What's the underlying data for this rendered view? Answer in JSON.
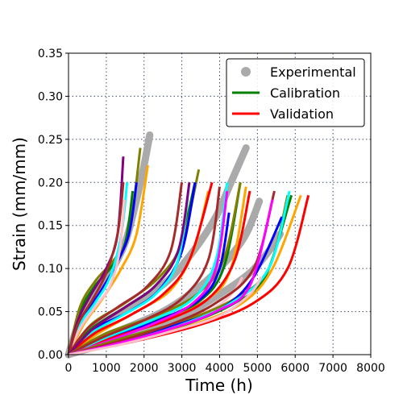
{
  "chart_data": {
    "type": "line",
    "xlabel": "Time (h)",
    "ylabel": "Strain (mm/mm)",
    "xlim": [
      0,
      8000
    ],
    "ylim": [
      0,
      0.35
    ],
    "xticks": [
      "0",
      "1000",
      "2000",
      "3000",
      "4000",
      "5000",
      "6000",
      "7000",
      "8000"
    ],
    "yticks": [
      "0.00",
      "0.05",
      "0.10",
      "0.15",
      "0.20",
      "0.25",
      "0.30",
      "0.35"
    ],
    "grid": true,
    "legend_position": "top-right",
    "legend": [
      {
        "label": "Experimental",
        "kind": "marker",
        "color": "#aaaaaa"
      },
      {
        "label": "Calibration",
        "kind": "line",
        "color": "#008000"
      },
      {
        "label": "Validation",
        "kind": "line",
        "color": "#ff0000"
      }
    ],
    "experimental_series": [
      {
        "points": [
          [
            0,
            0.0
          ],
          [
            300,
            0.04
          ],
          [
            700,
            0.07
          ],
          [
            1100,
            0.095
          ],
          [
            1500,
            0.13
          ],
          [
            1800,
            0.18
          ],
          [
            2000,
            0.22
          ],
          [
            2150,
            0.255
          ]
        ]
      },
      {
        "points": [
          [
            0,
            0.0
          ],
          [
            700,
            0.03
          ],
          [
            1600,
            0.055
          ],
          [
            2600,
            0.085
          ],
          [
            3300,
            0.12
          ],
          [
            3900,
            0.16
          ],
          [
            4300,
            0.2
          ],
          [
            4700,
            0.24
          ]
        ]
      },
      {
        "points": [
          [
            0,
            0.0
          ],
          [
            1200,
            0.025
          ],
          [
            2500,
            0.05
          ],
          [
            3500,
            0.08
          ],
          [
            4200,
            0.11
          ],
          [
            4700,
            0.14
          ],
          [
            5050,
            0.178
          ]
        ]
      },
      {
        "points": [
          [
            0,
            0.0
          ],
          [
            1500,
            0.02
          ],
          [
            3000,
            0.045
          ],
          [
            4000,
            0.07
          ],
          [
            4800,
            0.095
          ],
          [
            5300,
            0.12
          ],
          [
            5600,
            0.14
          ]
        ]
      }
    ],
    "model_series": [
      {
        "color": "#008000",
        "points": [
          [
            0,
            0.0
          ],
          [
            300,
            0.05
          ],
          [
            700,
            0.08
          ],
          [
            1100,
            0.1
          ],
          [
            1500,
            0.13
          ],
          [
            1700,
            0.19
          ]
        ]
      },
      {
        "color": "#808000",
        "points": [
          [
            0,
            0.0
          ],
          [
            300,
            0.055
          ],
          [
            700,
            0.085
          ],
          [
            1200,
            0.11
          ],
          [
            1600,
            0.14
          ],
          [
            1900,
            0.24
          ]
        ]
      },
      {
        "color": "#800080",
        "points": [
          [
            0,
            0.0
          ],
          [
            250,
            0.04
          ],
          [
            600,
            0.07
          ],
          [
            1000,
            0.1
          ],
          [
            1300,
            0.14
          ],
          [
            1450,
            0.23
          ]
        ]
      },
      {
        "color": "#0000ff",
        "points": [
          [
            0,
            0.0
          ],
          [
            350,
            0.04
          ],
          [
            800,
            0.07
          ],
          [
            1200,
            0.1
          ],
          [
            1600,
            0.14
          ],
          [
            1800,
            0.2
          ]
        ]
      },
      {
        "color": "#ffa500",
        "points": [
          [
            0,
            0.0
          ],
          [
            400,
            0.035
          ],
          [
            900,
            0.065
          ],
          [
            1400,
            0.1
          ],
          [
            1800,
            0.14
          ],
          [
            2100,
            0.22
          ]
        ]
      },
      {
        "color": "#00ffff",
        "points": [
          [
            0,
            0.0
          ],
          [
            300,
            0.035
          ],
          [
            700,
            0.06
          ],
          [
            1100,
            0.09
          ],
          [
            1400,
            0.14
          ],
          [
            1550,
            0.2
          ]
        ]
      },
      {
        "color": "#ffc0cb",
        "points": [
          [
            0,
            0.0
          ],
          [
            300,
            0.03
          ],
          [
            700,
            0.055
          ],
          [
            1100,
            0.08
          ],
          [
            1350,
            0.12
          ],
          [
            1480,
            0.18
          ]
        ]
      },
      {
        "color": "#a52a2a",
        "points": [
          [
            0,
            0.0
          ],
          [
            250,
            0.035
          ],
          [
            650,
            0.065
          ],
          [
            1000,
            0.095
          ],
          [
            1300,
            0.14
          ],
          [
            1450,
            0.2
          ]
        ]
      },
      {
        "color": "#008000",
        "points": [
          [
            0,
            0.0
          ],
          [
            600,
            0.03
          ],
          [
            1500,
            0.055
          ],
          [
            2300,
            0.08
          ],
          [
            2900,
            0.12
          ],
          [
            3350,
            0.2
          ]
        ]
      },
      {
        "color": "#808000",
        "points": [
          [
            0,
            0.0
          ],
          [
            600,
            0.035
          ],
          [
            1500,
            0.06
          ],
          [
            2400,
            0.09
          ],
          [
            3000,
            0.13
          ],
          [
            3450,
            0.215
          ]
        ]
      },
      {
        "color": "#0000ff",
        "points": [
          [
            0,
            0.0
          ],
          [
            700,
            0.03
          ],
          [
            1600,
            0.05
          ],
          [
            2400,
            0.075
          ],
          [
            3000,
            0.12
          ],
          [
            3350,
            0.2
          ]
        ]
      },
      {
        "color": "#ffa500",
        "points": [
          [
            0,
            0.0
          ],
          [
            800,
            0.025
          ],
          [
            1800,
            0.05
          ],
          [
            2700,
            0.075
          ],
          [
            3300,
            0.12
          ],
          [
            3700,
            0.19
          ]
        ]
      },
      {
        "color": "#00ffff",
        "points": [
          [
            0,
            0.0
          ],
          [
            600,
            0.025
          ],
          [
            1400,
            0.045
          ],
          [
            2300,
            0.07
          ],
          [
            2900,
            0.11
          ],
          [
            3200,
            0.2
          ]
        ]
      },
      {
        "color": "#a52a2a",
        "points": [
          [
            0,
            0.0
          ],
          [
            500,
            0.03
          ],
          [
            1300,
            0.055
          ],
          [
            2100,
            0.08
          ],
          [
            2700,
            0.12
          ],
          [
            3000,
            0.2
          ]
        ]
      },
      {
        "color": "#ff0000",
        "points": [
          [
            0,
            0.0
          ],
          [
            700,
            0.025
          ],
          [
            1600,
            0.045
          ],
          [
            2500,
            0.07
          ],
          [
            3200,
            0.11
          ],
          [
            3800,
            0.2
          ]
        ]
      },
      {
        "color": "#800080",
        "points": [
          [
            0,
            0.0
          ],
          [
            650,
            0.03
          ],
          [
            1500,
            0.055
          ],
          [
            2300,
            0.08
          ],
          [
            2900,
            0.12
          ],
          [
            3200,
            0.2
          ]
        ]
      },
      {
        "color": "#008000",
        "points": [
          [
            0,
            0.0
          ],
          [
            1000,
            0.02
          ],
          [
            2300,
            0.04
          ],
          [
            3400,
            0.06
          ],
          [
            4100,
            0.1
          ],
          [
            4550,
            0.2
          ]
        ]
      },
      {
        "color": "#808000",
        "points": [
          [
            0,
            0.0
          ],
          [
            1000,
            0.025
          ],
          [
            2300,
            0.045
          ],
          [
            3400,
            0.07
          ],
          [
            4100,
            0.11
          ],
          [
            4550,
            0.2
          ]
        ]
      },
      {
        "color": "#0000ff",
        "points": [
          [
            0,
            0.0
          ],
          [
            1100,
            0.02
          ],
          [
            2400,
            0.04
          ],
          [
            3500,
            0.065
          ],
          [
            4000,
            0.1
          ],
          [
            4250,
            0.165
          ]
        ]
      },
      {
        "color": "#ffa500",
        "points": [
          [
            0,
            0.0
          ],
          [
            1200,
            0.02
          ],
          [
            2600,
            0.04
          ],
          [
            3700,
            0.065
          ],
          [
            4300,
            0.1
          ],
          [
            4700,
            0.195
          ]
        ]
      },
      {
        "color": "#ff0000",
        "points": [
          [
            0,
            0.0
          ],
          [
            1200,
            0.02
          ],
          [
            2600,
            0.04
          ],
          [
            3700,
            0.065
          ],
          [
            4400,
            0.11
          ],
          [
            4800,
            0.19
          ]
        ]
      },
      {
        "color": "#00ffff",
        "points": [
          [
            0,
            0.0
          ],
          [
            1000,
            0.02
          ],
          [
            2200,
            0.04
          ],
          [
            3300,
            0.065
          ],
          [
            3900,
            0.11
          ],
          [
            4200,
            0.2
          ]
        ]
      },
      {
        "color": "#a52a2a",
        "points": [
          [
            0,
            0.0
          ],
          [
            900,
            0.02
          ],
          [
            2000,
            0.04
          ],
          [
            3000,
            0.065
          ],
          [
            3700,
            0.11
          ],
          [
            4000,
            0.195
          ]
        ]
      },
      {
        "color": "#ff00ff",
        "points": [
          [
            0,
            0.0
          ],
          [
            1000,
            0.015
          ],
          [
            2200,
            0.035
          ],
          [
            3300,
            0.06
          ],
          [
            3900,
            0.1
          ],
          [
            4200,
            0.19
          ]
        ]
      },
      {
        "color": "#ffc0cb",
        "points": [
          [
            0,
            0.0
          ],
          [
            1300,
            0.015
          ],
          [
            2800,
            0.035
          ],
          [
            3900,
            0.055
          ],
          [
            4400,
            0.075
          ],
          [
            4600,
            0.09
          ]
        ]
      },
      {
        "color": "#008000",
        "points": [
          [
            0,
            0.0
          ],
          [
            1500,
            0.015
          ],
          [
            3100,
            0.035
          ],
          [
            4400,
            0.06
          ],
          [
            5200,
            0.09
          ],
          [
            5900,
            0.185
          ]
        ]
      },
      {
        "color": "#808000",
        "points": [
          [
            0,
            0.0
          ],
          [
            1500,
            0.02
          ],
          [
            3100,
            0.04
          ],
          [
            4400,
            0.065
          ],
          [
            5300,
            0.1
          ],
          [
            5800,
            0.185
          ]
        ]
      },
      {
        "color": "#0000ff",
        "points": [
          [
            0,
            0.0
          ],
          [
            1400,
            0.015
          ],
          [
            2900,
            0.035
          ],
          [
            4100,
            0.055
          ],
          [
            4900,
            0.09
          ],
          [
            5650,
            0.16
          ]
        ]
      },
      {
        "color": "#ffa500",
        "points": [
          [
            0,
            0.0
          ],
          [
            1600,
            0.015
          ],
          [
            3300,
            0.035
          ],
          [
            4600,
            0.06
          ],
          [
            5400,
            0.1
          ],
          [
            6150,
            0.185
          ]
        ]
      },
      {
        "color": "#ff0000",
        "points": [
          [
            0,
            0.0
          ],
          [
            1700,
            0.015
          ],
          [
            3500,
            0.035
          ],
          [
            4900,
            0.06
          ],
          [
            5800,
            0.1
          ],
          [
            6350,
            0.185
          ]
        ]
      },
      {
        "color": "#00ffff",
        "points": [
          [
            0,
            0.0
          ],
          [
            1500,
            0.015
          ],
          [
            3000,
            0.035
          ],
          [
            4300,
            0.06
          ],
          [
            5300,
            0.1
          ],
          [
            5850,
            0.19
          ]
        ]
      },
      {
        "color": "#a52a2a",
        "points": [
          [
            0,
            0.0
          ],
          [
            1300,
            0.015
          ],
          [
            2700,
            0.035
          ],
          [
            3900,
            0.06
          ],
          [
            4900,
            0.1
          ],
          [
            5450,
            0.19
          ]
        ]
      },
      {
        "color": "#ff00ff",
        "points": [
          [
            0,
            0.0
          ],
          [
            1300,
            0.013
          ],
          [
            2700,
            0.03
          ],
          [
            3900,
            0.05
          ],
          [
            4800,
            0.08
          ],
          [
            5400,
            0.18
          ]
        ]
      },
      {
        "color": "#ffc0cb",
        "points": [
          [
            0,
            0.0
          ],
          [
            1400,
            0.012
          ],
          [
            2800,
            0.028
          ],
          [
            4000,
            0.045
          ],
          [
            4800,
            0.07
          ],
          [
            5100,
            0.09
          ]
        ]
      }
    ]
  }
}
